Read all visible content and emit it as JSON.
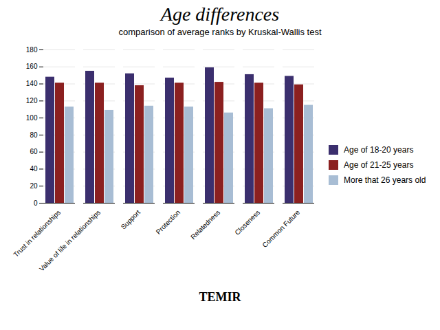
{
  "chart_data": {
    "type": "bar",
    "title": "Age differences",
    "subtitle": "comparison of average ranks by Kruskal-Wallis test",
    "caption": "TEMIR",
    "categories": [
      "Trust in relationships",
      "Value of life in relationships",
      "Support",
      "Protection",
      "Relatedness",
      "Closeness",
      "Common Future"
    ],
    "series": [
      {
        "name": "Age of 18-20 years",
        "color": "#3b2f6e",
        "values": [
          148,
          155,
          152,
          147,
          159,
          151,
          149
        ]
      },
      {
        "name": "Age of 21-25 years",
        "color": "#8b2020",
        "values": [
          141,
          141,
          138,
          141,
          142,
          141,
          139
        ]
      },
      {
        "name": "More that 26 years old",
        "color": "#a8bdd4",
        "values": [
          113,
          109,
          114,
          113,
          106,
          111,
          115
        ]
      }
    ],
    "ylim": [
      0,
      180
    ],
    "yticks": [
      0,
      20,
      40,
      60,
      80,
      100,
      120,
      140,
      160,
      180
    ],
    "grid": true,
    "legend": "right"
  }
}
